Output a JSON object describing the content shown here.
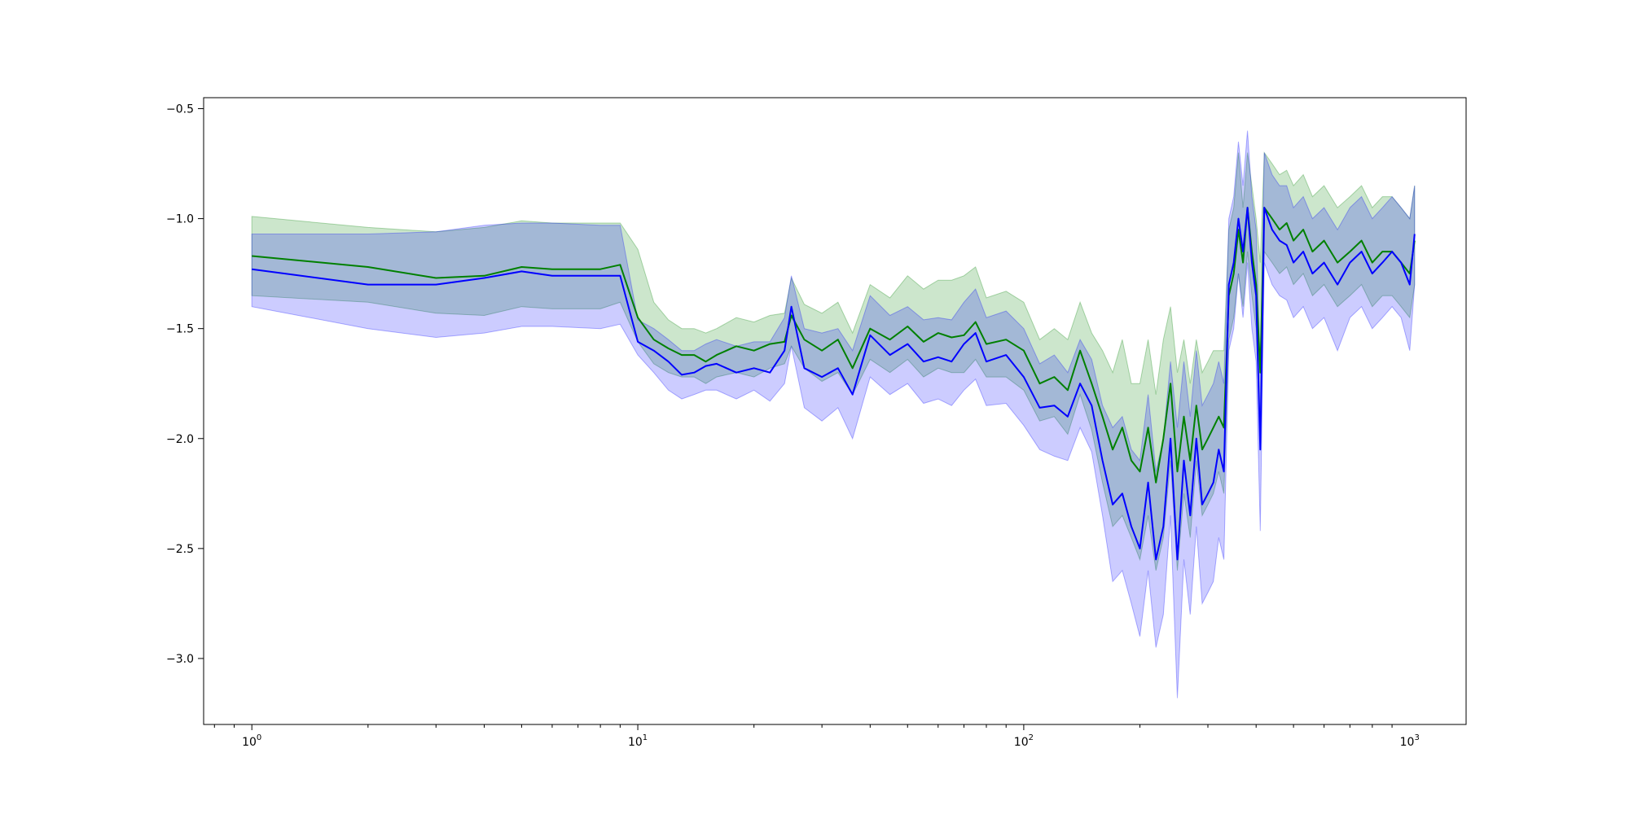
{
  "chart_data": {
    "type": "line",
    "title": "",
    "xlabel": "",
    "ylabel": "",
    "xscale": "log",
    "xlim": [
      0.75,
      1400
    ],
    "ylim": [
      -3.3,
      -0.45
    ],
    "grid": false,
    "legend": "none",
    "x_ticks": [
      {
        "value": 1,
        "base": "10",
        "exp": "0"
      },
      {
        "value": 10,
        "base": "10",
        "exp": "1"
      },
      {
        "value": 100,
        "base": "10",
        "exp": "2"
      },
      {
        "value": 1000,
        "base": "10",
        "exp": "3"
      }
    ],
    "y_ticks": [
      {
        "value": -0.5,
        "label": "−0.5"
      },
      {
        "value": -1.0,
        "label": "−1.0"
      },
      {
        "value": -1.5,
        "label": "−1.5"
      },
      {
        "value": -2.0,
        "label": "−2.0"
      },
      {
        "value": -2.5,
        "label": "−2.5"
      },
      {
        "value": -3.0,
        "label": "−3.0"
      }
    ],
    "series": [
      {
        "color": "#008000",
        "band_color": "#008000",
        "x": [
          1,
          2,
          3,
          4,
          5,
          6,
          8,
          9,
          10,
          11,
          12,
          13,
          14,
          15,
          16,
          18,
          20,
          22,
          24,
          25,
          27,
          30,
          33,
          36,
          40,
          45,
          50,
          55,
          60,
          65,
          70,
          75,
          80,
          90,
          100,
          110,
          120,
          130,
          140,
          150,
          160,
          170,
          180,
          190,
          200,
          210,
          220,
          230,
          240,
          250,
          260,
          270,
          280,
          290,
          300,
          310,
          320,
          330,
          340,
          350,
          360,
          370,
          380,
          390,
          400,
          410,
          420,
          440,
          460,
          480,
          500,
          530,
          560,
          600,
          650,
          700,
          750,
          800,
          850,
          900,
          950,
          1000,
          1030
        ],
        "y": [
          -1.17,
          -1.22,
          -1.27,
          -1.26,
          -1.22,
          -1.23,
          -1.23,
          -1.21,
          -1.45,
          -1.55,
          -1.59,
          -1.62,
          -1.62,
          -1.65,
          -1.62,
          -1.58,
          -1.6,
          -1.57,
          -1.56,
          -1.44,
          -1.55,
          -1.6,
          -1.55,
          -1.68,
          -1.5,
          -1.55,
          -1.49,
          -1.56,
          -1.52,
          -1.54,
          -1.53,
          -1.47,
          -1.57,
          -1.55,
          -1.6,
          -1.75,
          -1.72,
          -1.78,
          -1.6,
          -1.75,
          -1.9,
          -2.05,
          -1.95,
          -2.1,
          -2.15,
          -1.95,
          -2.2,
          -2.0,
          -1.75,
          -2.15,
          -1.9,
          -2.1,
          -1.85,
          -2.05,
          -2.0,
          -1.95,
          -1.9,
          -1.95,
          -1.35,
          -1.25,
          -1.05,
          -1.2,
          -0.95,
          -1.15,
          -1.3,
          -1.7,
          -0.95,
          -1.0,
          -1.05,
          -1.02,
          -1.1,
          -1.05,
          -1.15,
          -1.1,
          -1.2,
          -1.15,
          -1.1,
          -1.2,
          -1.15,
          -1.15,
          -1.2,
          -1.25,
          -1.1
        ],
        "lower": [
          -1.35,
          -1.38,
          -1.43,
          -1.44,
          -1.4,
          -1.41,
          -1.41,
          -1.38,
          -1.56,
          -1.66,
          -1.7,
          -1.72,
          -1.72,
          -1.75,
          -1.72,
          -1.7,
          -1.72,
          -1.68,
          -1.66,
          -1.58,
          -1.68,
          -1.74,
          -1.7,
          -1.8,
          -1.64,
          -1.7,
          -1.64,
          -1.72,
          -1.68,
          -1.7,
          -1.7,
          -1.64,
          -1.72,
          -1.72,
          -1.78,
          -1.92,
          -1.9,
          -1.98,
          -1.8,
          -1.96,
          -2.2,
          -2.4,
          -2.35,
          -2.45,
          -2.55,
          -2.35,
          -2.6,
          -2.45,
          -2.1,
          -2.6,
          -2.25,
          -2.45,
          -2.1,
          -2.35,
          -2.3,
          -2.25,
          -2.15,
          -2.25,
          -1.55,
          -1.45,
          -1.25,
          -1.4,
          -1.15,
          -1.35,
          -1.5,
          -2.0,
          -1.15,
          -1.2,
          -1.25,
          -1.22,
          -1.3,
          -1.25,
          -1.35,
          -1.3,
          -1.4,
          -1.35,
          -1.3,
          -1.4,
          -1.35,
          -1.35,
          -1.4,
          -1.45,
          -1.3
        ],
        "upper": [
          -0.99,
          -1.04,
          -1.06,
          -1.04,
          -1.01,
          -1.02,
          -1.02,
          -1.02,
          -1.14,
          -1.38,
          -1.46,
          -1.5,
          -1.5,
          -1.52,
          -1.5,
          -1.45,
          -1.47,
          -1.44,
          -1.43,
          -1.27,
          -1.39,
          -1.43,
          -1.38,
          -1.52,
          -1.3,
          -1.36,
          -1.26,
          -1.32,
          -1.28,
          -1.28,
          -1.26,
          -1.22,
          -1.36,
          -1.33,
          -1.38,
          -1.55,
          -1.5,
          -1.55,
          -1.38,
          -1.52,
          -1.6,
          -1.7,
          -1.55,
          -1.75,
          -1.75,
          -1.55,
          -1.8,
          -1.55,
          -1.4,
          -1.7,
          -1.55,
          -1.75,
          -1.55,
          -1.7,
          -1.65,
          -1.6,
          -1.6,
          -1.6,
          -1.05,
          -0.95,
          -0.7,
          -0.95,
          -0.7,
          -0.85,
          -1.0,
          -1.2,
          -0.7,
          -0.75,
          -0.8,
          -0.78,
          -0.85,
          -0.8,
          -0.9,
          -0.85,
          -0.95,
          -0.9,
          -0.85,
          -0.95,
          -0.9,
          -0.9,
          -0.95,
          -1.0,
          -0.85
        ]
      },
      {
        "color": "#0000ff",
        "band_color": "#0000ff",
        "x": [
          1,
          2,
          3,
          4,
          5,
          6,
          8,
          9,
          10,
          11,
          12,
          13,
          14,
          15,
          16,
          18,
          20,
          22,
          24,
          25,
          27,
          30,
          33,
          36,
          40,
          45,
          50,
          55,
          60,
          65,
          70,
          75,
          80,
          90,
          100,
          110,
          120,
          130,
          140,
          150,
          160,
          170,
          180,
          190,
          200,
          210,
          220,
          230,
          240,
          250,
          260,
          270,
          280,
          290,
          300,
          310,
          320,
          330,
          340,
          350,
          360,
          370,
          380,
          390,
          400,
          410,
          420,
          440,
          460,
          480,
          500,
          530,
          560,
          600,
          650,
          700,
          750,
          800,
          850,
          900,
          950,
          1000,
          1030
        ],
        "y": [
          -1.23,
          -1.3,
          -1.3,
          -1.27,
          -1.24,
          -1.26,
          -1.26,
          -1.26,
          -1.56,
          -1.6,
          -1.65,
          -1.71,
          -1.7,
          -1.67,
          -1.66,
          -1.7,
          -1.68,
          -1.7,
          -1.6,
          -1.4,
          -1.68,
          -1.72,
          -1.68,
          -1.8,
          -1.53,
          -1.62,
          -1.57,
          -1.65,
          -1.63,
          -1.65,
          -1.57,
          -1.52,
          -1.65,
          -1.62,
          -1.72,
          -1.86,
          -1.85,
          -1.9,
          -1.75,
          -1.85,
          -2.1,
          -2.3,
          -2.25,
          -2.4,
          -2.5,
          -2.2,
          -2.55,
          -2.4,
          -2.0,
          -2.55,
          -2.1,
          -2.35,
          -2.0,
          -2.3,
          -2.25,
          -2.2,
          -2.05,
          -2.15,
          -1.3,
          -1.2,
          -1.0,
          -1.15,
          -0.95,
          -1.2,
          -1.35,
          -2.05,
          -0.95,
          -1.05,
          -1.1,
          -1.12,
          -1.2,
          -1.15,
          -1.25,
          -1.2,
          -1.3,
          -1.2,
          -1.15,
          -1.25,
          -1.2,
          -1.15,
          -1.2,
          -1.3,
          -1.07
        ],
        "lower": [
          -1.4,
          -1.5,
          -1.54,
          -1.52,
          -1.49,
          -1.49,
          -1.5,
          -1.48,
          -1.62,
          -1.7,
          -1.78,
          -1.82,
          -1.8,
          -1.78,
          -1.78,
          -1.82,
          -1.78,
          -1.83,
          -1.75,
          -1.58,
          -1.86,
          -1.92,
          -1.86,
          -2.0,
          -1.72,
          -1.8,
          -1.75,
          -1.84,
          -1.82,
          -1.85,
          -1.78,
          -1.73,
          -1.85,
          -1.84,
          -1.94,
          -2.05,
          -2.08,
          -2.1,
          -1.95,
          -2.06,
          -2.35,
          -2.65,
          -2.6,
          -2.75,
          -2.9,
          -2.6,
          -2.95,
          -2.8,
          -2.35,
          -3.18,
          -2.55,
          -2.8,
          -2.4,
          -2.75,
          -2.7,
          -2.65,
          -2.45,
          -2.55,
          -1.6,
          -1.5,
          -1.25,
          -1.45,
          -1.2,
          -1.5,
          -1.65,
          -2.42,
          -1.2,
          -1.3,
          -1.35,
          -1.37,
          -1.45,
          -1.4,
          -1.5,
          -1.45,
          -1.6,
          -1.45,
          -1.4,
          -1.5,
          -1.45,
          -1.4,
          -1.45,
          -1.6,
          -1.3
        ],
        "upper": [
          -1.07,
          -1.07,
          -1.06,
          -1.03,
          -1.02,
          -1.02,
          -1.03,
          -1.03,
          -1.46,
          -1.5,
          -1.55,
          -1.6,
          -1.6,
          -1.57,
          -1.55,
          -1.58,
          -1.56,
          -1.56,
          -1.45,
          -1.26,
          -1.5,
          -1.52,
          -1.5,
          -1.6,
          -1.35,
          -1.44,
          -1.4,
          -1.46,
          -1.45,
          -1.46,
          -1.38,
          -1.32,
          -1.45,
          -1.42,
          -1.5,
          -1.66,
          -1.62,
          -1.7,
          -1.55,
          -1.64,
          -1.85,
          -1.95,
          -1.9,
          -2.05,
          -2.1,
          -1.8,
          -2.15,
          -2.0,
          -1.65,
          -1.95,
          -1.65,
          -1.9,
          -1.6,
          -1.85,
          -1.8,
          -1.75,
          -1.65,
          -1.75,
          -1.0,
          -0.9,
          -0.65,
          -0.85,
          -0.6,
          -0.9,
          -1.05,
          -1.7,
          -0.7,
          -0.8,
          -0.85,
          -0.85,
          -0.95,
          -0.9,
          -1.0,
          -0.95,
          -1.05,
          -0.95,
          -0.9,
          -1.0,
          -0.95,
          -0.9,
          -0.95,
          -1.0,
          -0.85
        ]
      }
    ]
  }
}
